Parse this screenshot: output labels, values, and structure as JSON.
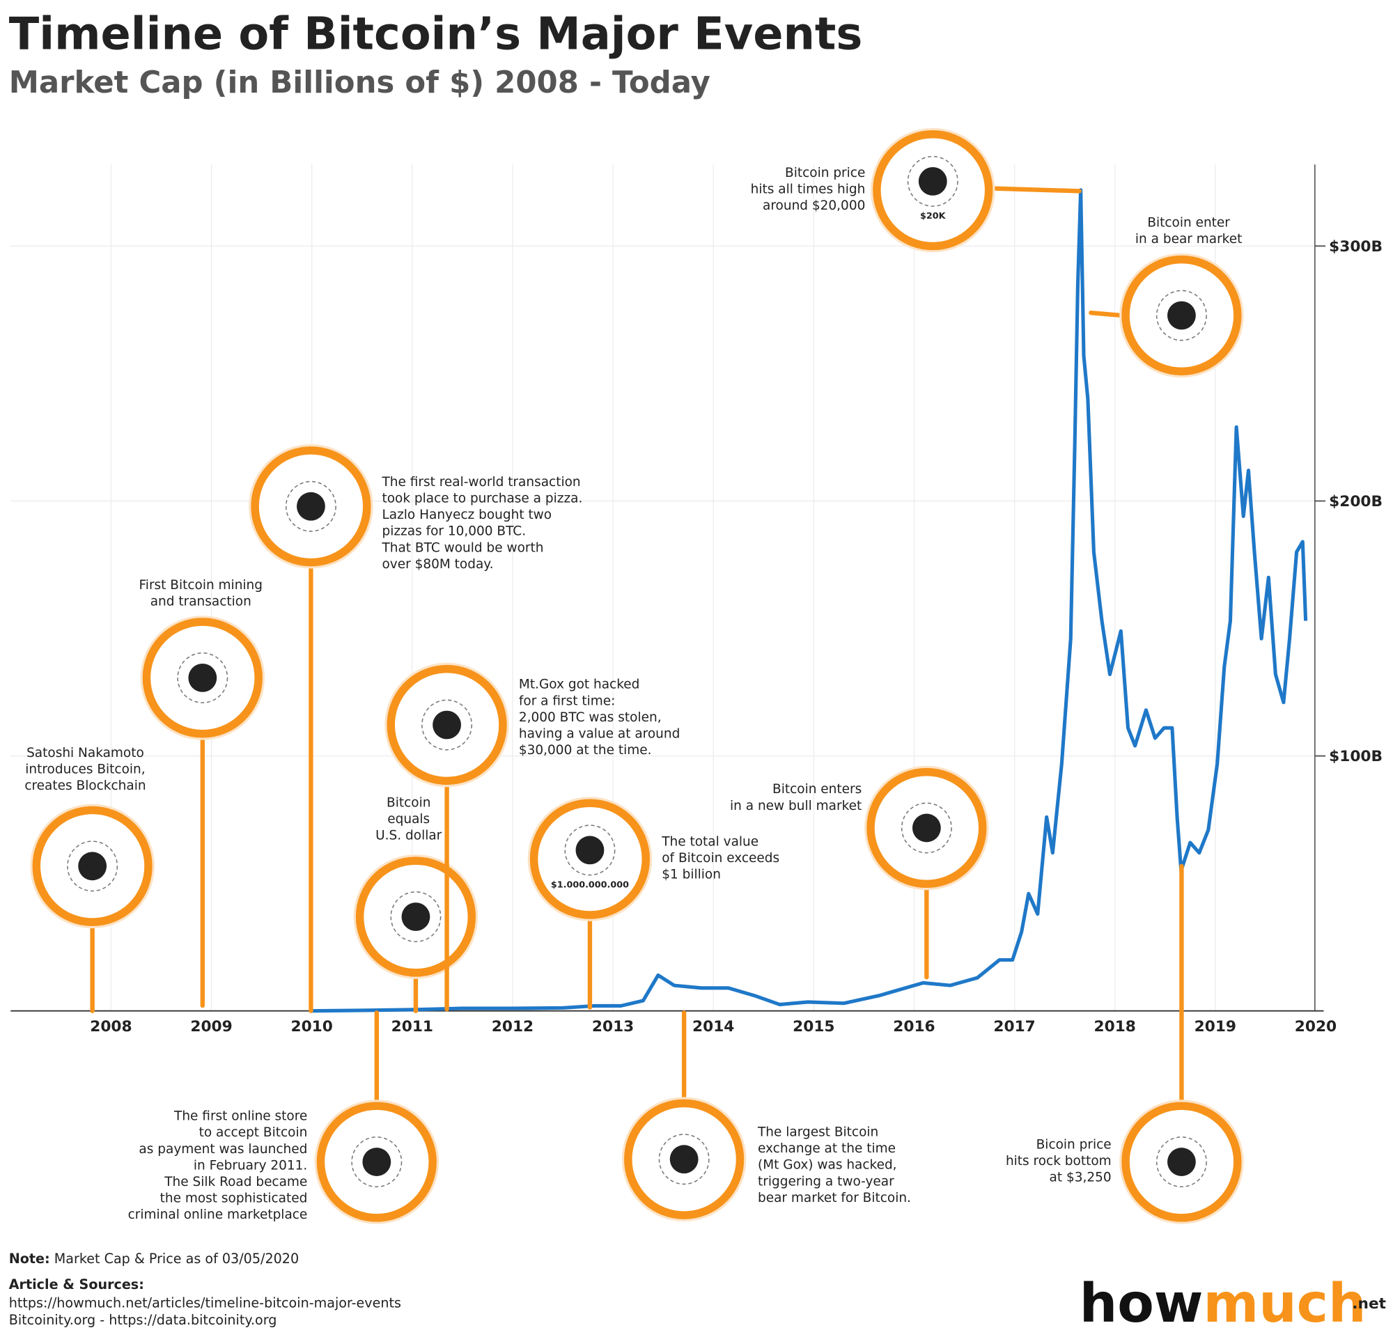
{
  "chart_data": {
    "type": "line",
    "title": "Timeline of Bitcoin’s Major Events",
    "subtitle": "Market Cap (in Billions of $) 2008 - Today",
    "x": [
      2010.0,
      2010.5,
      2011.0,
      2011.5,
      2012.0,
      2012.5,
      2012.82,
      2013.08,
      2013.3,
      2013.45,
      2013.61,
      2013.88,
      2014.15,
      2014.41,
      2014.66,
      2014.94,
      2015.3,
      2015.65,
      2016.09,
      2016.36,
      2016.63,
      2016.85,
      2016.98,
      2017.07,
      2017.14,
      2017.23,
      2017.32,
      2017.38,
      2017.47,
      2017.56,
      2017.6,
      2017.63,
      2017.66,
      2017.69,
      2017.73,
      2017.79,
      2017.87,
      2017.95,
      2018.06,
      2018.13,
      2018.2,
      2018.31,
      2018.4,
      2018.49,
      2018.57,
      2018.62,
      2018.66,
      2018.75,
      2018.84,
      2018.93,
      2019.02,
      2019.09,
      2019.15,
      2019.21,
      2019.28,
      2019.33,
      2019.39,
      2019.46,
      2019.53,
      2019.6,
      2019.68,
      2019.74,
      2019.81,
      2019.87,
      2019.9
    ],
    "values": [
      0,
      0.2,
      0.5,
      1,
      1,
      1.2,
      2,
      2,
      4,
      14,
      10,
      9,
      9,
      6,
      2.5,
      3.5,
      3,
      6,
      11,
      10,
      13,
      20,
      20,
      31,
      46,
      38,
      76,
      62,
      97,
      146,
      222,
      285,
      322,
      257,
      240,
      180,
      153,
      132,
      149,
      111,
      104,
      118,
      107,
      111,
      111,
      76,
      55,
      66,
      62,
      71,
      97,
      135,
      153,
      229,
      194,
      212,
      180,
      146,
      170,
      132,
      121,
      146,
      180,
      184,
      153
    ],
    "color": "#1f78c8",
    "xlim": [
      2007,
      2020.08
    ],
    "xticks": [
      2008,
      2009,
      2010,
      2011,
      2012,
      2013,
      2014,
      2015,
      2016,
      2017,
      2018,
      2019,
      2020
    ],
    "ylim": [
      0,
      332
    ],
    "yticks": [
      {
        "value": 100,
        "label": "$100B"
      },
      {
        "value": 200,
        "label": "$200B"
      },
      {
        "value": 300,
        "label": "$300B"
      }
    ],
    "grid": true,
    "annotations": [
      {
        "text": [
          "Satoshi Nakamoto",
          "introduces Bitcoin,",
          "creates Blockchain"
        ]
      },
      {
        "text": [
          "First Bitcoin mining",
          "and transaction"
        ]
      },
      {
        "text": [
          "The first real-world transaction",
          "took place to purchase a pizza.",
          "Lazlo Hanyecz bought two",
          "pizzas for 10,000 BTC.",
          "That BTC would be worth",
          "over $80M today."
        ]
      },
      {
        "text": [
          "Bitcoin",
          "equals",
          "U.S. dollar"
        ]
      },
      {
        "text": [
          "Mt.Gox got hacked",
          "for a first time:",
          "2,000 BTC was stolen,",
          "having a value at around",
          "$30,000 at the time."
        ]
      },
      {
        "text": [
          "The total value",
          "of Bitcoin exceeds",
          "$1 billion"
        ],
        "icon_text": "$1.000.000.000"
      },
      {
        "text": [
          "Bitcoin enters",
          "in a new bull market"
        ]
      },
      {
        "text": [
          "Bitcoin price",
          "hits all times high",
          "around $20,000"
        ],
        "icon_text": "$20K"
      },
      {
        "text": [
          "Bitcoin enter",
          "in a bear market"
        ]
      },
      {
        "text": [
          "The first online store",
          "to accept Bitcoin",
          "as payment was launched",
          "in February 2011.",
          "The Silk Road became",
          "the most sophisticated",
          "criminal online marketplace"
        ]
      },
      {
        "text": [
          "The largest Bitcoin",
          "exchange at the time",
          "(Mt Gox) was hacked,",
          "triggering a two-year",
          "bear market for Bitcoin."
        ]
      },
      {
        "text": [
          "Bicoin price",
          "hits rock bottom",
          "at $3,250"
        ]
      }
    ],
    "note": {
      "label": "Note:",
      "text": "Market Cap & Price as of 03/05/2020"
    },
    "sources": {
      "label": "Article & Sources:",
      "lines": [
        "https://howmuch.net/articles/timeline-bitcoin-major-events",
        "Bitcoinity.org - https://data.bitcoinity.org"
      ]
    },
    "logo": [
      "how",
      "much",
      ".net"
    ]
  }
}
